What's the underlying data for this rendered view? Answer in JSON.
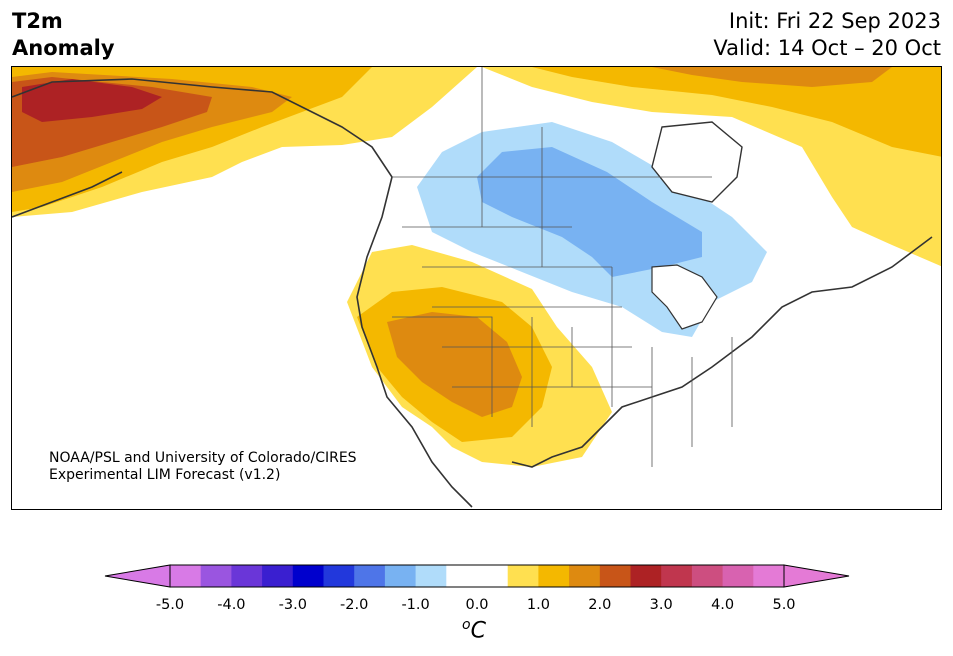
{
  "title": {
    "line1": "T2m",
    "line2": "Anomaly"
  },
  "init": "Init: Fri 22 Sep 2023",
  "valid": "Valid: 14 Oct – 20 Oct",
  "credit": {
    "line1": "NOAA/PSL and University of Colorado/CIRES",
    "line2": "Experimental LIM Forecast (v1.2)"
  },
  "colorbar": {
    "colors": [
      "#d87ae6",
      "#9a55e0",
      "#6a36d8",
      "#3a1fd0",
      "#0000cd",
      "#2238dc",
      "#4e75e8",
      "#78b2f2",
      "#b0dcfa",
      "#ffffff",
      "#ffffff",
      "#ffe050",
      "#f4b800",
      "#de8a10",
      "#c85518",
      "#ad2224",
      "#c0364e",
      "#cd4e80",
      "#d862b0",
      "#e47ad6"
    ],
    "underflow_color": "#d87ae6",
    "overflow_color": "#e47ad6",
    "tick_labels": [
      "-5.0",
      "-4.0",
      "-3.0",
      "-2.0",
      "-1.0",
      "0.0",
      "1.0",
      "2.0",
      "3.0",
      "4.0",
      "5.0"
    ],
    "unit_symbol": "o",
    "unit_letter": "C"
  },
  "anomaly_regions": [
    {
      "name": "alaska",
      "level_c": 3.0
    },
    {
      "name": "southwest-us",
      "level_c": 2.0
    },
    {
      "name": "eastern-canada",
      "level_c": 1.0
    },
    {
      "name": "northern-plains-great-lakes",
      "level_c": -1.0
    }
  ]
}
